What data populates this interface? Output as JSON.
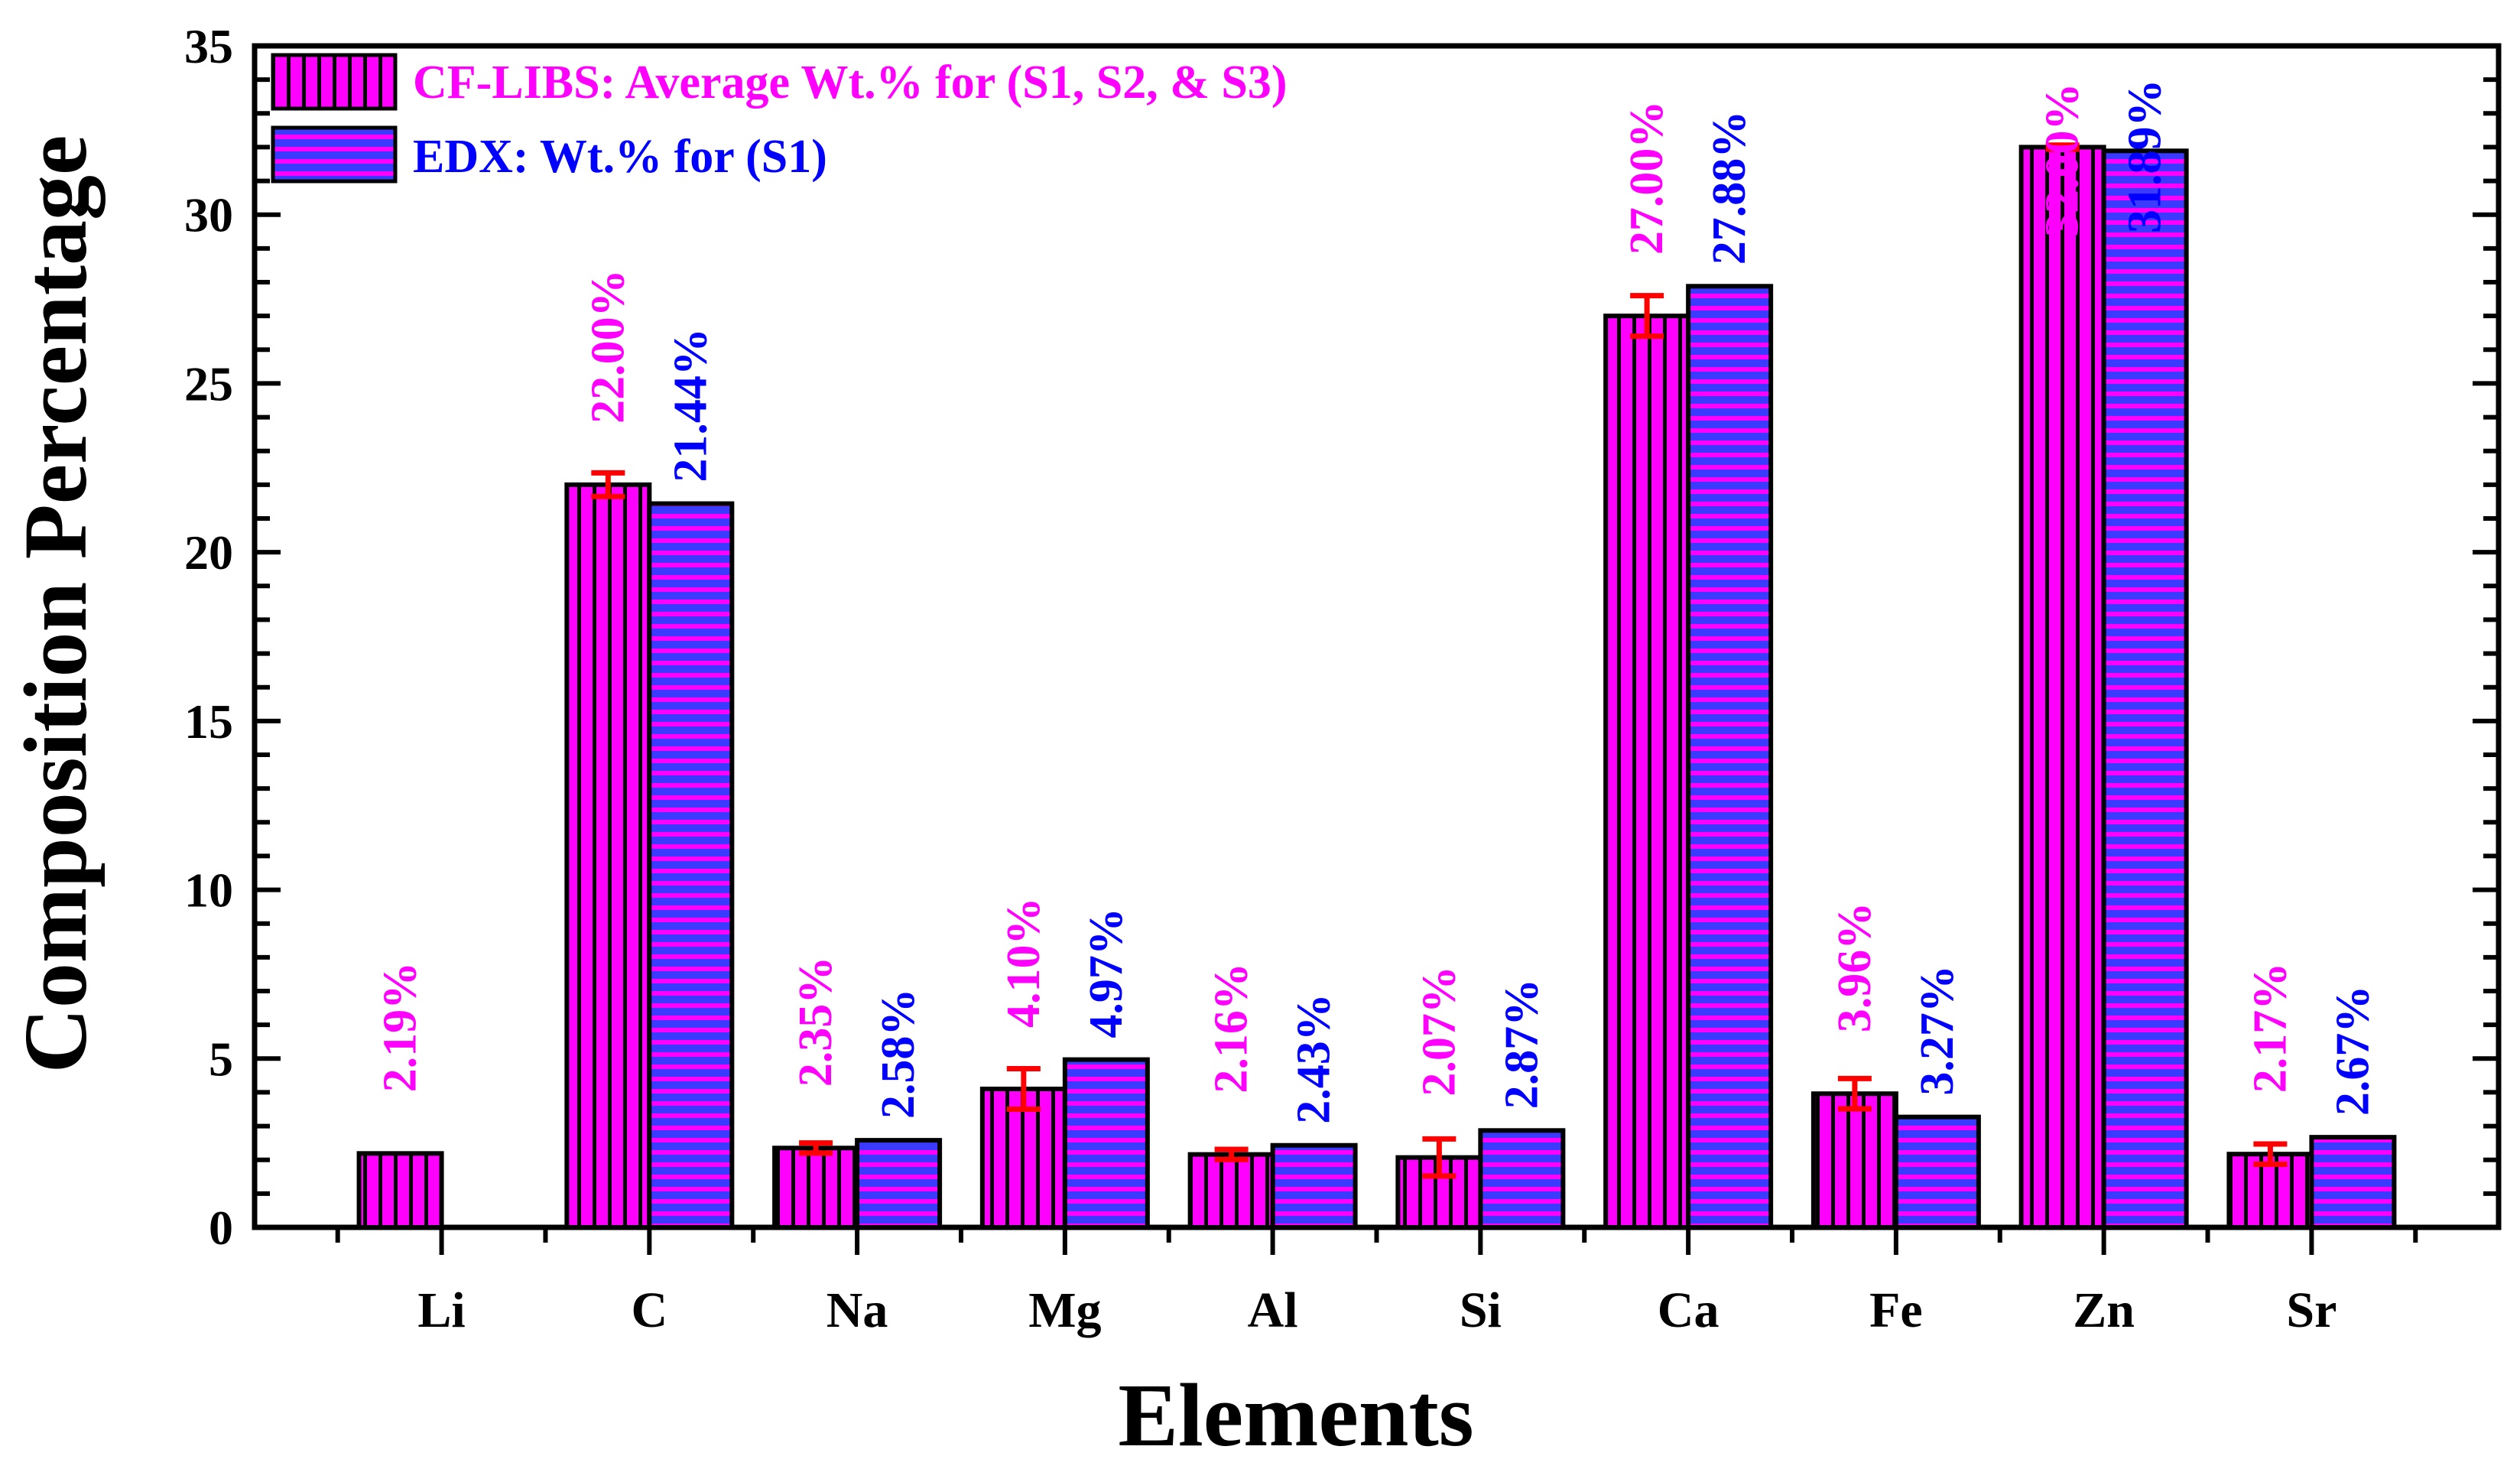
{
  "chart_data": {
    "type": "bar",
    "title": "",
    "xlabel": "Elements",
    "ylabel": "Composition Percentage",
    "ylim": [
      0,
      35
    ],
    "yticks": [
      0,
      5,
      10,
      15,
      20,
      25,
      30,
      35
    ],
    "y_minor_step": 1,
    "grid": false,
    "legend_position": "top-left",
    "categories": [
      "Li",
      "C",
      "Na",
      "Mg",
      "Al",
      "Si",
      "Ca",
      "Fe",
      "Zn",
      "Sr"
    ],
    "series": [
      {
        "name": "CF-LIBS: Average Wt.% for (S1, S2, & S3)",
        "color": "#ff00ff",
        "stripe_color": "#000000",
        "label_color": "#ff00ff",
        "pattern": "vertical-stripes",
        "values": [
          2.19,
          22.0,
          2.35,
          4.1,
          2.16,
          2.07,
          27.0,
          3.96,
          32.0,
          2.17
        ],
        "labels": [
          "2.19%",
          "22.00%",
          "2.35%",
          "4.10%",
          "2.16%",
          "2.07%",
          "27.00%",
          "3.96%",
          "32.00%",
          "2.17%"
        ],
        "errors": [
          0,
          0.35,
          0.15,
          0.6,
          0.15,
          0.55,
          0.6,
          0.45,
          0.06,
          0.3
        ]
      },
      {
        "name": "EDX: Wt.% for (S1)",
        "color": "#3b3bff",
        "stripe_color": "#ff00ff",
        "label_color": "#0000ff",
        "pattern": "horizontal-stripes",
        "values": [
          null,
          21.44,
          2.58,
          4.97,
          2.43,
          2.87,
          27.88,
          3.27,
          31.89,
          2.67
        ],
        "labels": [
          "",
          "21.44%",
          "2.58%",
          "4.97%",
          "2.43%",
          "2.87%",
          "27.88%",
          "3.27%",
          "31.89%",
          "2.67%"
        ]
      }
    ],
    "error_bar_color": "#ff0000"
  }
}
